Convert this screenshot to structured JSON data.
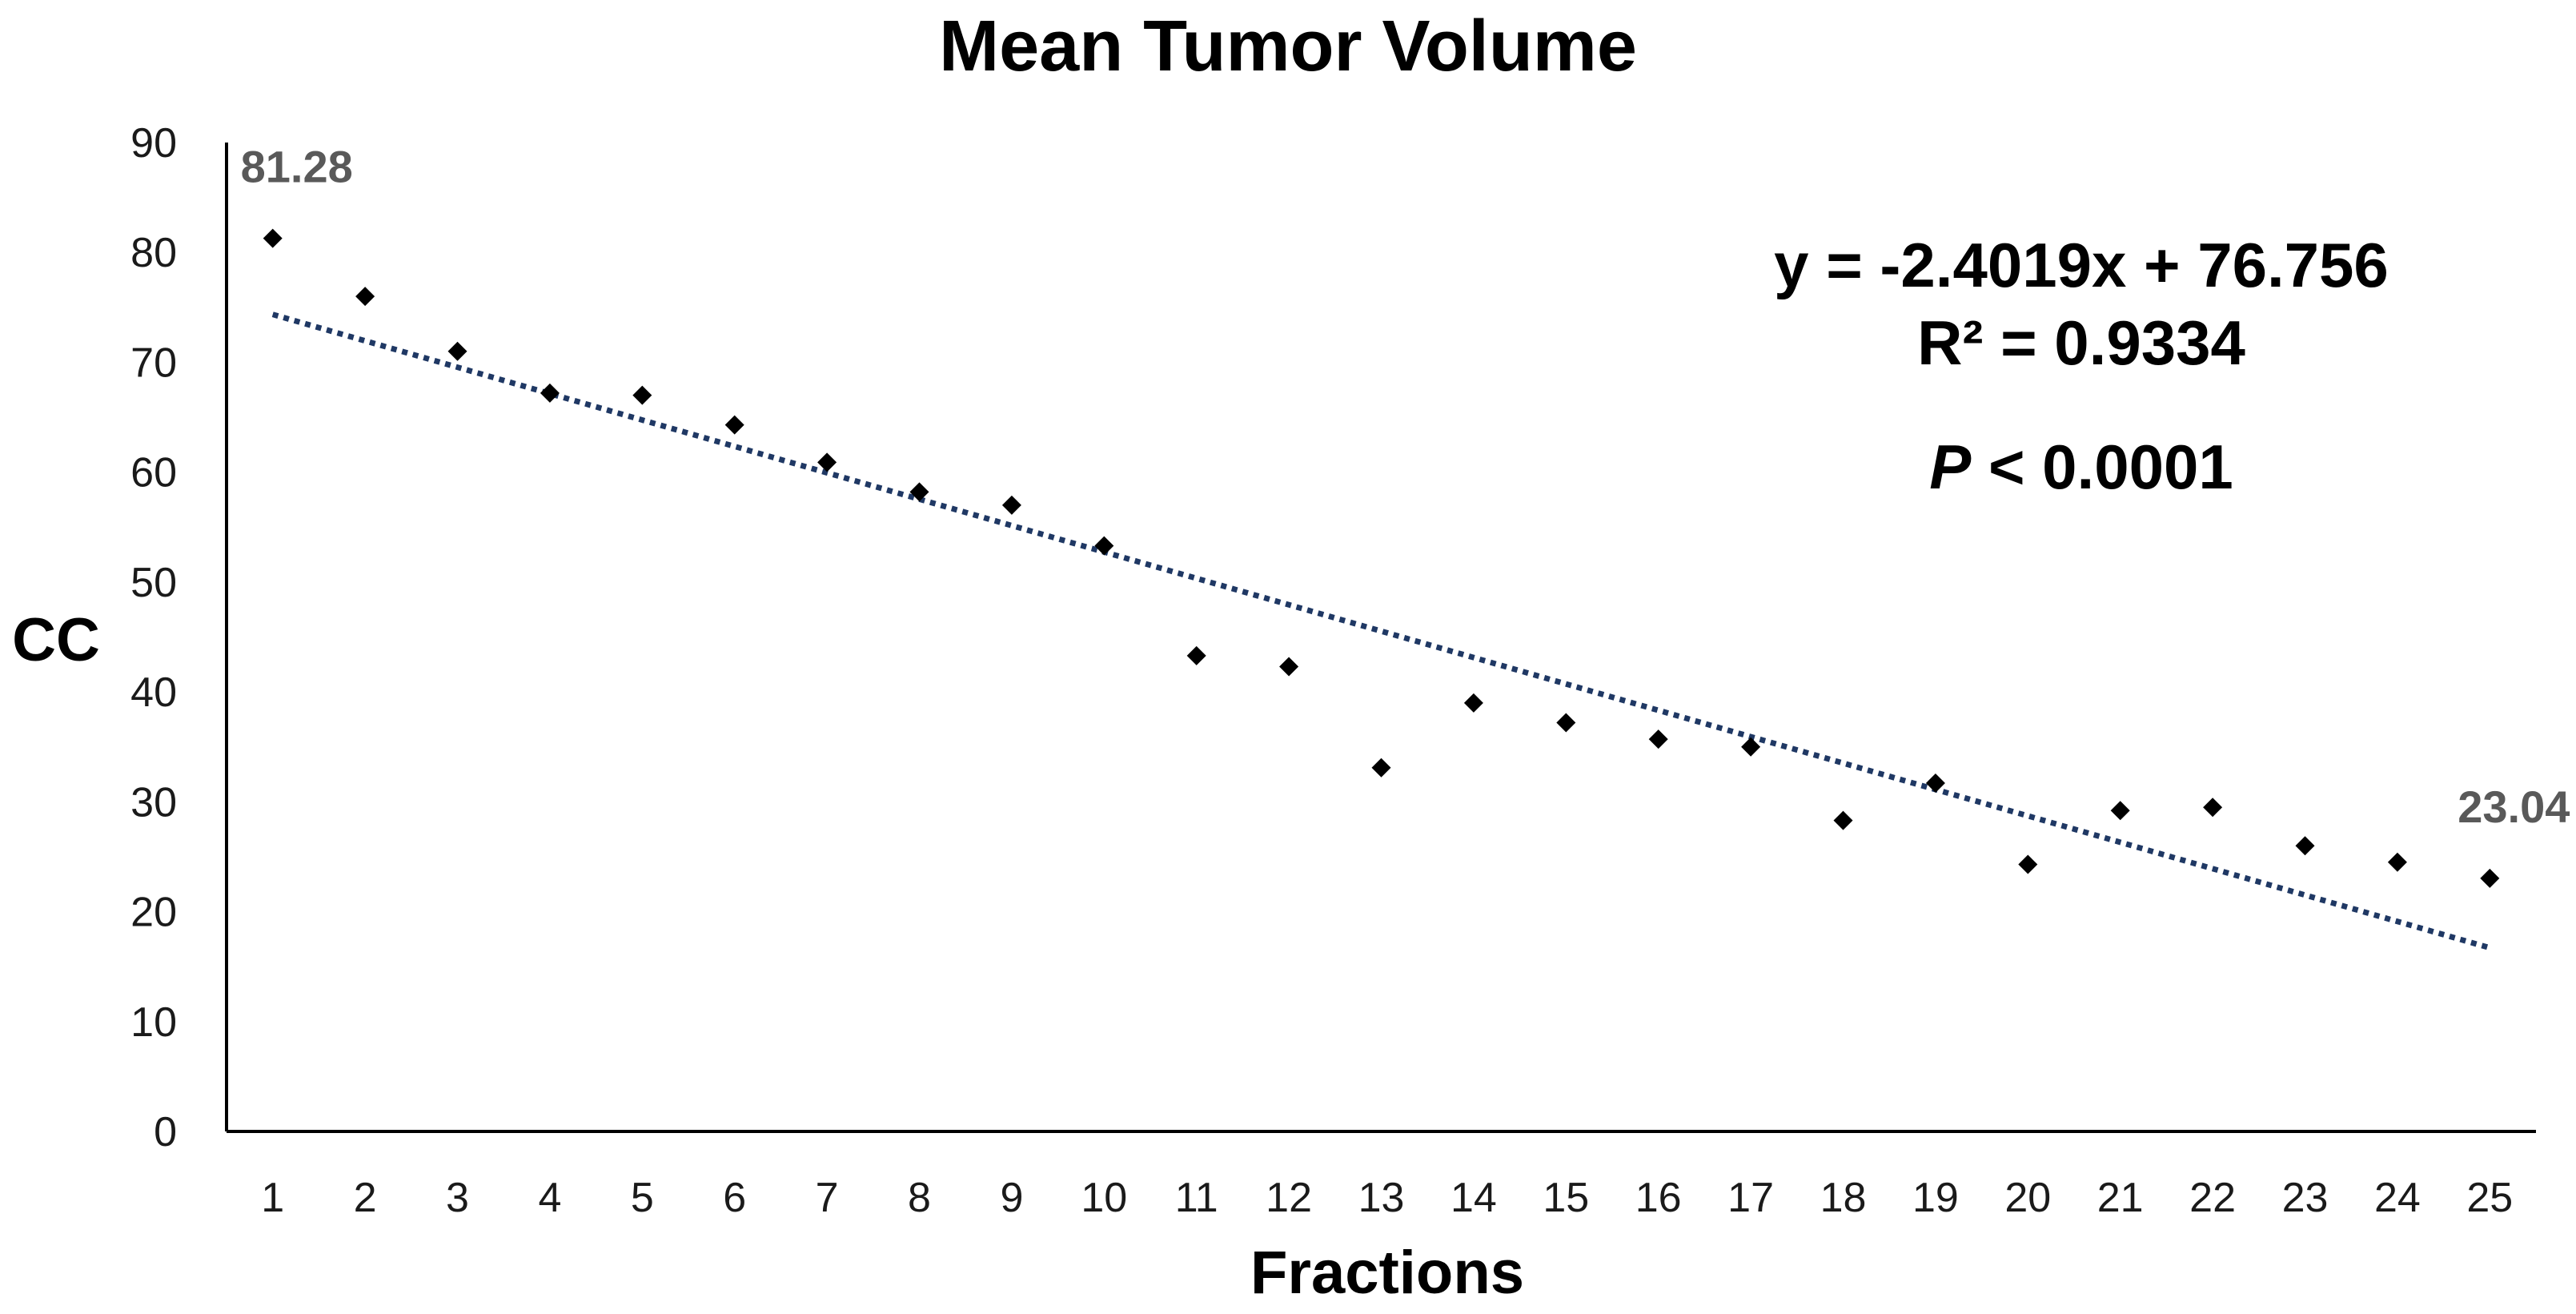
{
  "chart_data": {
    "type": "scatter",
    "title": "Mean Tumor Volume",
    "xlabel": "Fractions",
    "ylabel": "CC",
    "xlim": [
      0.5,
      25.5
    ],
    "ylim": [
      0,
      90
    ],
    "x_ticks": [
      "1",
      "2",
      "3",
      "4",
      "5",
      "6",
      "7",
      "8",
      "9",
      "10",
      "11",
      "12",
      "13",
      "14",
      "15",
      "16",
      "17",
      "18",
      "19",
      "20",
      "21",
      "22",
      "23",
      "24",
      "25"
    ],
    "y_ticks": [
      "0",
      "10",
      "20",
      "30",
      "40",
      "50",
      "60",
      "70",
      "80",
      "90"
    ],
    "grid": false,
    "series": [
      {
        "name": "Mean Tumor Volume",
        "x": [
          1,
          2,
          3,
          4,
          5,
          6,
          7,
          8,
          9,
          10,
          11,
          12,
          13,
          14,
          15,
          16,
          17,
          18,
          19,
          20,
          21,
          22,
          23,
          24,
          25
        ],
        "y": [
          81.28,
          76.0,
          71.0,
          67.2,
          67.0,
          64.3,
          60.9,
          58.2,
          57.0,
          53.3,
          43.3,
          42.3,
          33.1,
          39.0,
          37.2,
          35.7,
          35.0,
          28.3,
          31.7,
          24.3,
          29.2,
          29.5,
          26.0,
          24.5,
          23.04
        ]
      }
    ],
    "trendline": {
      "slope": -2.4019,
      "intercept": 76.756,
      "style": "dotted"
    },
    "data_labels": [
      {
        "x": 1,
        "text": "81.28"
      },
      {
        "x": 25,
        "text": "23.04"
      }
    ],
    "annotations": {
      "equation": "y = -2.4019x + 76.756",
      "r_squared": "R² = 0.9334",
      "p_italic": "P",
      "p_rest": " < 0.0001"
    }
  }
}
